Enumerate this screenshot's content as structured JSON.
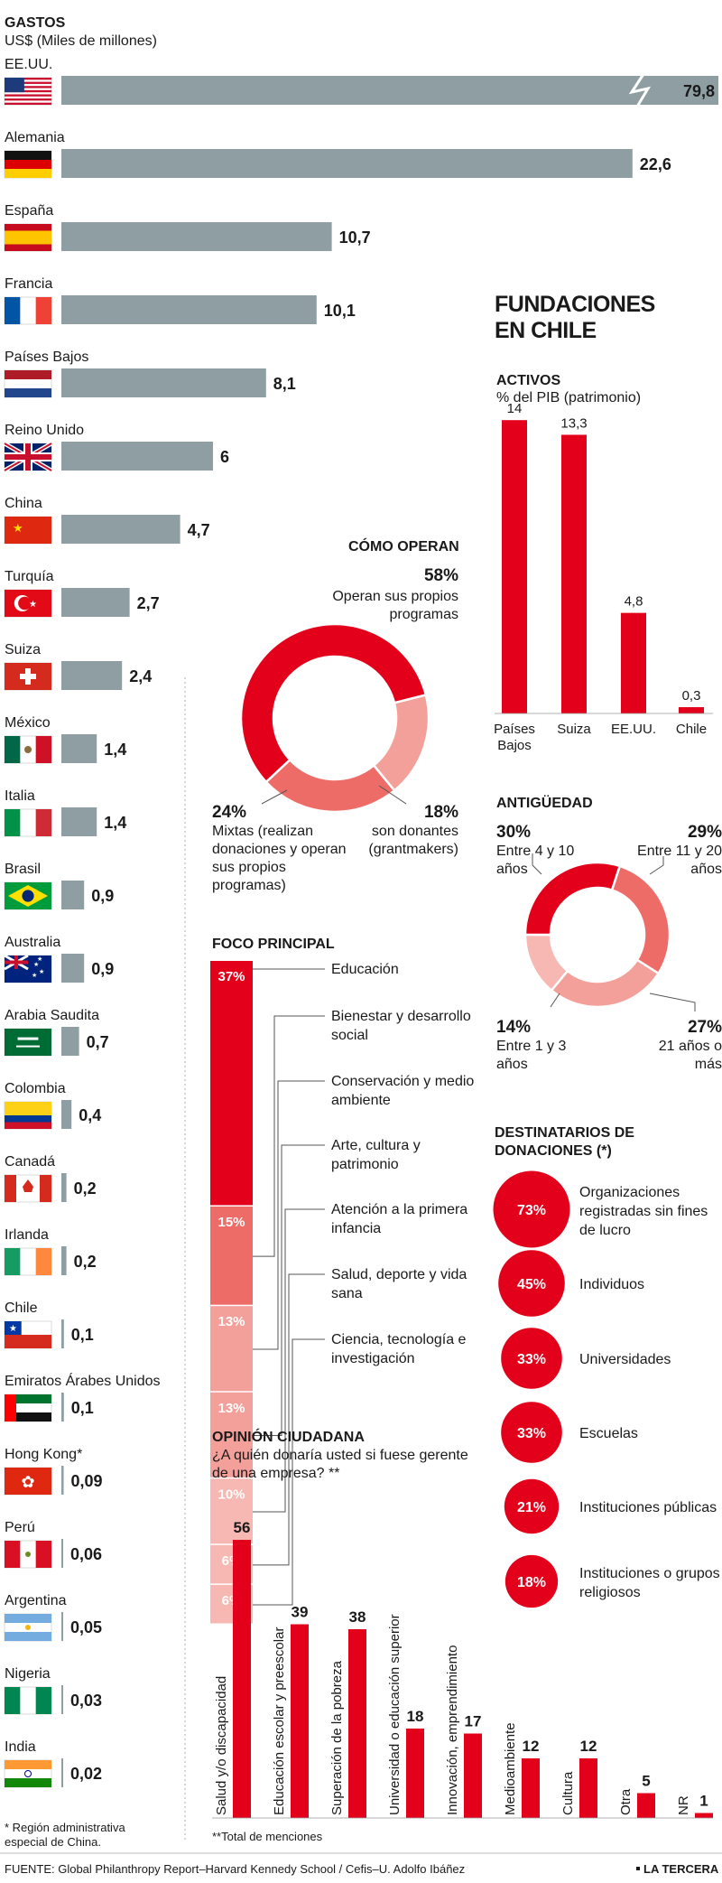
{
  "gastos": {
    "title": "GASTOS",
    "subtitle": "US$ (Miles de millones)",
    "footnote": "* Región administrativa especial de China.",
    "countries": [
      {
        "name": "EE.UU.",
        "value": "79,8",
        "v": 79.8,
        "flag": "flag-usa"
      },
      {
        "name": "Alemania",
        "value": "22,6",
        "v": 22.6,
        "flag": "flag-germany"
      },
      {
        "name": "España",
        "value": "10,7",
        "v": 10.7,
        "flag": "flag-spain"
      },
      {
        "name": "Francia",
        "value": "10,1",
        "v": 10.1,
        "flag": "flag-france"
      },
      {
        "name": "Países Bajos",
        "value": "8,1",
        "v": 8.1,
        "flag": "flag-netherlands"
      },
      {
        "name": "Reino Unido",
        "value": "6",
        "v": 6,
        "flag": "flag-uk"
      },
      {
        "name": "China",
        "value": "4,7",
        "v": 4.7,
        "flag": "flag-china"
      },
      {
        "name": "Turquía",
        "value": "2,7",
        "v": 2.7,
        "flag": "flag-turkey"
      },
      {
        "name": "Suiza",
        "value": "2,4",
        "v": 2.4,
        "flag": "flag-switzerland"
      },
      {
        "name": "México",
        "value": "1,4",
        "v": 1.4,
        "flag": "flag-mexico"
      },
      {
        "name": "Italia",
        "value": "1,4",
        "v": 1.4,
        "flag": "flag-italy"
      },
      {
        "name": "Brasil",
        "value": "0,9",
        "v": 0.9,
        "flag": "flag-brazil"
      },
      {
        "name": "Australia",
        "value": "0,9",
        "v": 0.9,
        "flag": "flag-australia"
      },
      {
        "name": "Arabia Saudita",
        "value": "0,7",
        "v": 0.7,
        "flag": "flag-saudi-arabia"
      },
      {
        "name": "Colombia",
        "value": "0,4",
        "v": 0.4,
        "flag": "flag-colombia"
      },
      {
        "name": "Canadá",
        "value": "0,2",
        "v": 0.2,
        "flag": "flag-canada"
      },
      {
        "name": "Irlanda",
        "value": "0,2",
        "v": 0.2,
        "flag": "flag-ireland"
      },
      {
        "name": "Chile",
        "value": "0,1",
        "v": 0.1,
        "flag": "flag-chile"
      },
      {
        "name": "Emiratos Árabes Unidos",
        "value": "0,1",
        "v": 0.1,
        "flag": "flag-uae"
      },
      {
        "name": "Hong Kong*",
        "value": "0,09",
        "v": 0.09,
        "flag": "flag-hong-kong"
      },
      {
        "name": "Perú",
        "value": "0,06",
        "v": 0.06,
        "flag": "flag-peru"
      },
      {
        "name": "Argentina",
        "value": "0,05",
        "v": 0.05,
        "flag": "flag-argentina"
      },
      {
        "name": "Nigeria",
        "value": "0,03",
        "v": 0.03,
        "flag": "flag-nigeria"
      },
      {
        "name": "India",
        "value": "0,02",
        "v": 0.02,
        "flag": "flag-india"
      }
    ]
  },
  "fundaciones": {
    "title_line1": "FUNDACIONES",
    "title_line2": "EN CHILE"
  },
  "activos": {
    "title": "ACTIVOS",
    "subtitle": "% del PIB (patrimonio)",
    "bars": [
      {
        "label": "Países Bajos",
        "value": "14",
        "v": 14
      },
      {
        "label": "Suiza",
        "value": "13,3",
        "v": 13.3
      },
      {
        "label": "EE.UU.",
        "value": "4,8",
        "v": 4.8
      },
      {
        "label": "Chile",
        "value": "0,3",
        "v": 0.3
      }
    ]
  },
  "como_operan": {
    "title": "CÓMO OPERAN",
    "segments": [
      {
        "pct": "58%",
        "v": 58,
        "text": "Operan sus propios programas",
        "color": "#e3001b"
      },
      {
        "pct": "18%",
        "v": 18,
        "text": "son donantes (grantmakers)",
        "color": "#f4a09a"
      },
      {
        "pct": "24%",
        "v": 24,
        "text": "Mixtas (realizan donaciones y operan sus propios programas)",
        "color": "#ee6c68"
      }
    ]
  },
  "antiguedad": {
    "title": "ANTIGÜEDAD",
    "segments": [
      {
        "pct": "29%",
        "v": 29,
        "text": "Entre 11 y 20 años",
        "color": "#ee6c68"
      },
      {
        "pct": "27%",
        "v": 27,
        "text": "21 años o más",
        "color": "#f4a09a"
      },
      {
        "pct": "14%",
        "v": 14,
        "text": "Entre 1 y 3 años",
        "color": "#f7b7b2"
      },
      {
        "pct": "30%",
        "v": 30,
        "text": "Entre 4 y 10 años",
        "color": "#e3001b"
      }
    ]
  },
  "foco": {
    "title": "FOCO PRINCIPAL",
    "items": [
      {
        "pct": "37%",
        "v": 37,
        "label": "Educación",
        "color": "#e3001b"
      },
      {
        "pct": "15%",
        "v": 15,
        "label": "Bienestar y desarrollo social",
        "color": "#ee6c68"
      },
      {
        "pct": "13%",
        "v": 13,
        "label": "Conservación y medio ambiente",
        "color": "#f4a09a"
      },
      {
        "pct": "13%",
        "v": 13,
        "label": "Arte, cultura y patrimonio",
        "color": "#f4a09a"
      },
      {
        "pct": "10%",
        "v": 10,
        "label": "Atención a la primera infancia",
        "color": "#f7b7b2"
      },
      {
        "pct": "6%",
        "v": 6,
        "label": "Salud, deporte y vida sana",
        "color": "#f7b7b2"
      },
      {
        "pct": "6%",
        "v": 6,
        "label": "Ciencia, tecnología e investigación",
        "color": "#f7b7b2"
      }
    ]
  },
  "destinatarios": {
    "title": "DESTINATARIOS DE DONACIONES (*)",
    "items": [
      {
        "pct": "73%",
        "v": 73,
        "label": "Organizaciones registradas sin fines de lucro"
      },
      {
        "pct": "45%",
        "v": 45,
        "label": "Individuos"
      },
      {
        "pct": "33%",
        "v": 33,
        "label": "Universidades"
      },
      {
        "pct": "33%",
        "v": 33,
        "label": "Escuelas"
      },
      {
        "pct": "21%",
        "v": 21,
        "label": "Instituciones públicas"
      },
      {
        "pct": "18%",
        "v": 18,
        "label": "Instituciones o grupos religiosos"
      }
    ]
  },
  "opinion": {
    "title": "OPINIÓN CIUDADANA",
    "question": "¿A quién donaría usted si fuese gerente de una empresa? **",
    "footnote": "**Total de menciones",
    "bars": [
      {
        "label": "Salud y/o discapacidad",
        "value": "56",
        "v": 56
      },
      {
        "label": "Educación escolar y preescolar",
        "value": "39",
        "v": 39
      },
      {
        "label": "Superación de la pobreza",
        "value": "38",
        "v": 38
      },
      {
        "label": "Universidad o educación superior",
        "value": "18",
        "v": 18
      },
      {
        "label": "Innovación, emprendimiento",
        "value": "17",
        "v": 17
      },
      {
        "label": "Medioambiente",
        "value": "12",
        "v": 12
      },
      {
        "label": "Cultura",
        "value": "12",
        "v": 12
      },
      {
        "label": "Otra",
        "value": "5",
        "v": 5
      },
      {
        "label": "NR",
        "value": "1",
        "v": 1
      }
    ]
  },
  "footer": {
    "source": "FUENTE: Global Philanthropy Report–Harvard Kennedy School / Cefis–U. Adolfo Ibáñez",
    "brand": "LA TERCERA"
  },
  "colors": {
    "gray_bar": "#8f9ea3",
    "red": "#e3001b",
    "accent_dark": "#1a1a1a"
  },
  "chart_data": [
    {
      "type": "bar",
      "title": "GASTOS",
      "ylabel": "US$ (Miles de millones)",
      "categories": [
        "EE.UU.",
        "Alemania",
        "España",
        "Francia",
        "Países Bajos",
        "Reino Unido",
        "China",
        "Turquía",
        "Suiza",
        "México",
        "Italia",
        "Brasil",
        "Australia",
        "Arabia Saudita",
        "Colombia",
        "Canadá",
        "Irlanda",
        "Chile",
        "Emiratos Árabes Unidos",
        "Hong Kong*",
        "Perú",
        "Argentina",
        "Nigeria",
        "India"
      ],
      "values": [
        79.8,
        22.6,
        10.7,
        10.1,
        8.1,
        6,
        4.7,
        2.7,
        2.4,
        1.4,
        1.4,
        0.9,
        0.9,
        0.7,
        0.4,
        0.2,
        0.2,
        0.1,
        0.1,
        0.09,
        0.06,
        0.05,
        0.03,
        0.02
      ]
    },
    {
      "type": "bar",
      "title": "ACTIVOS",
      "ylabel": "% del PIB (patrimonio)",
      "categories": [
        "Países Bajos",
        "Suiza",
        "EE.UU.",
        "Chile"
      ],
      "values": [
        14,
        13.3,
        4.8,
        0.3
      ]
    },
    {
      "type": "pie",
      "title": "CÓMO OPERAN",
      "categories": [
        "Operan sus propios programas",
        "son donantes (grantmakers)",
        "Mixtas (realizan donaciones y operan sus propios programas)"
      ],
      "values": [
        58,
        18,
        24
      ]
    },
    {
      "type": "pie",
      "title": "ANTIGÜEDAD",
      "categories": [
        "Entre 11 y 20 años",
        "21 años o más",
        "Entre 1 y 3 años",
        "Entre 4 y 10 años"
      ],
      "values": [
        29,
        27,
        14,
        30
      ]
    },
    {
      "type": "bar",
      "title": "FOCO PRINCIPAL",
      "categories": [
        "Educación",
        "Bienestar y desarrollo social",
        "Conservación y medio ambiente",
        "Arte, cultura y patrimonio",
        "Atención a la primera infancia",
        "Salud, deporte y vida sana",
        "Ciencia, tecnología e investigación"
      ],
      "values": [
        37,
        15,
        13,
        13,
        10,
        6,
        6
      ]
    },
    {
      "type": "bar",
      "title": "DESTINATARIOS DE DONACIONES (*)",
      "categories": [
        "Organizaciones registradas sin fines de lucro",
        "Individuos",
        "Universidades",
        "Escuelas",
        "Instituciones públicas",
        "Instituciones o grupos religiosos"
      ],
      "values": [
        73,
        45,
        33,
        33,
        21,
        18
      ]
    },
    {
      "type": "bar",
      "title": "OPINIÓN CIUDADANA",
      "categories": [
        "Salud y/o discapacidad",
        "Educación escolar y preescolar",
        "Superación de la pobreza",
        "Universidad o educación superior",
        "Innovación, emprendimiento",
        "Medioambiente",
        "Cultura",
        "Otra",
        "NR"
      ],
      "values": [
        56,
        39,
        38,
        18,
        17,
        12,
        12,
        5,
        1
      ]
    }
  ]
}
